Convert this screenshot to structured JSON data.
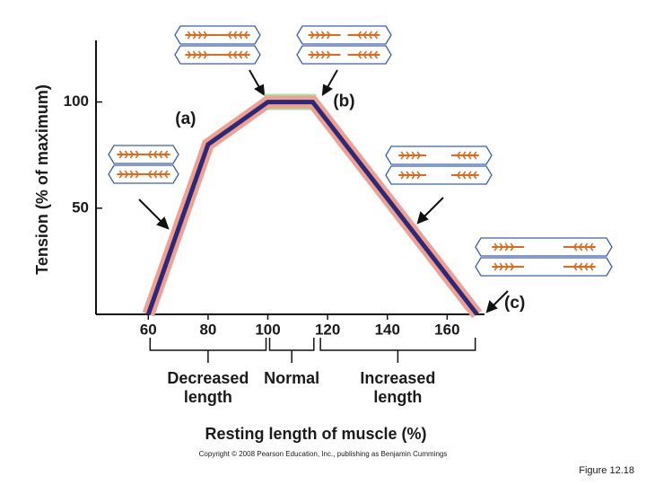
{
  "chart_data": {
    "type": "line",
    "y_label": "Tension (% of maximum)",
    "x_label": "Resting length of muscle (%)",
    "x": [
      60,
      80,
      100,
      115,
      170
    ],
    "series": [
      {
        "name": "Tension",
        "color": "#2b2a7a",
        "halo": "#f0a090",
        "values": [
          0,
          80,
          100,
          100,
          0
        ]
      }
    ],
    "xlim": [
      42.5,
      172.5
    ],
    "ylim": [
      0,
      129
    ],
    "xticks": [
      60,
      80,
      100,
      120,
      140,
      160
    ],
    "yticks": [
      50,
      100
    ],
    "annotations": [
      {
        "text": "(a)",
        "x": 80,
        "y": 80
      },
      {
        "text": "(b)",
        "x": 115,
        "y": 100
      },
      {
        "text": "(c)",
        "x": 170,
        "y": 0
      }
    ],
    "ranges": [
      {
        "label": [
          "Decreased",
          "length"
        ],
        "from": 60,
        "to": 100
      },
      {
        "label": [
          "Normal"
        ],
        "from": 100,
        "to": 116
      },
      {
        "label": [
          "Increased",
          "length"
        ],
        "from": 117,
        "to": 170
      }
    ],
    "copyright": "Copyright © 2008 Pearson Education, Inc., publishing as Benjamin Cummings",
    "figure": "Figure 12.18"
  }
}
